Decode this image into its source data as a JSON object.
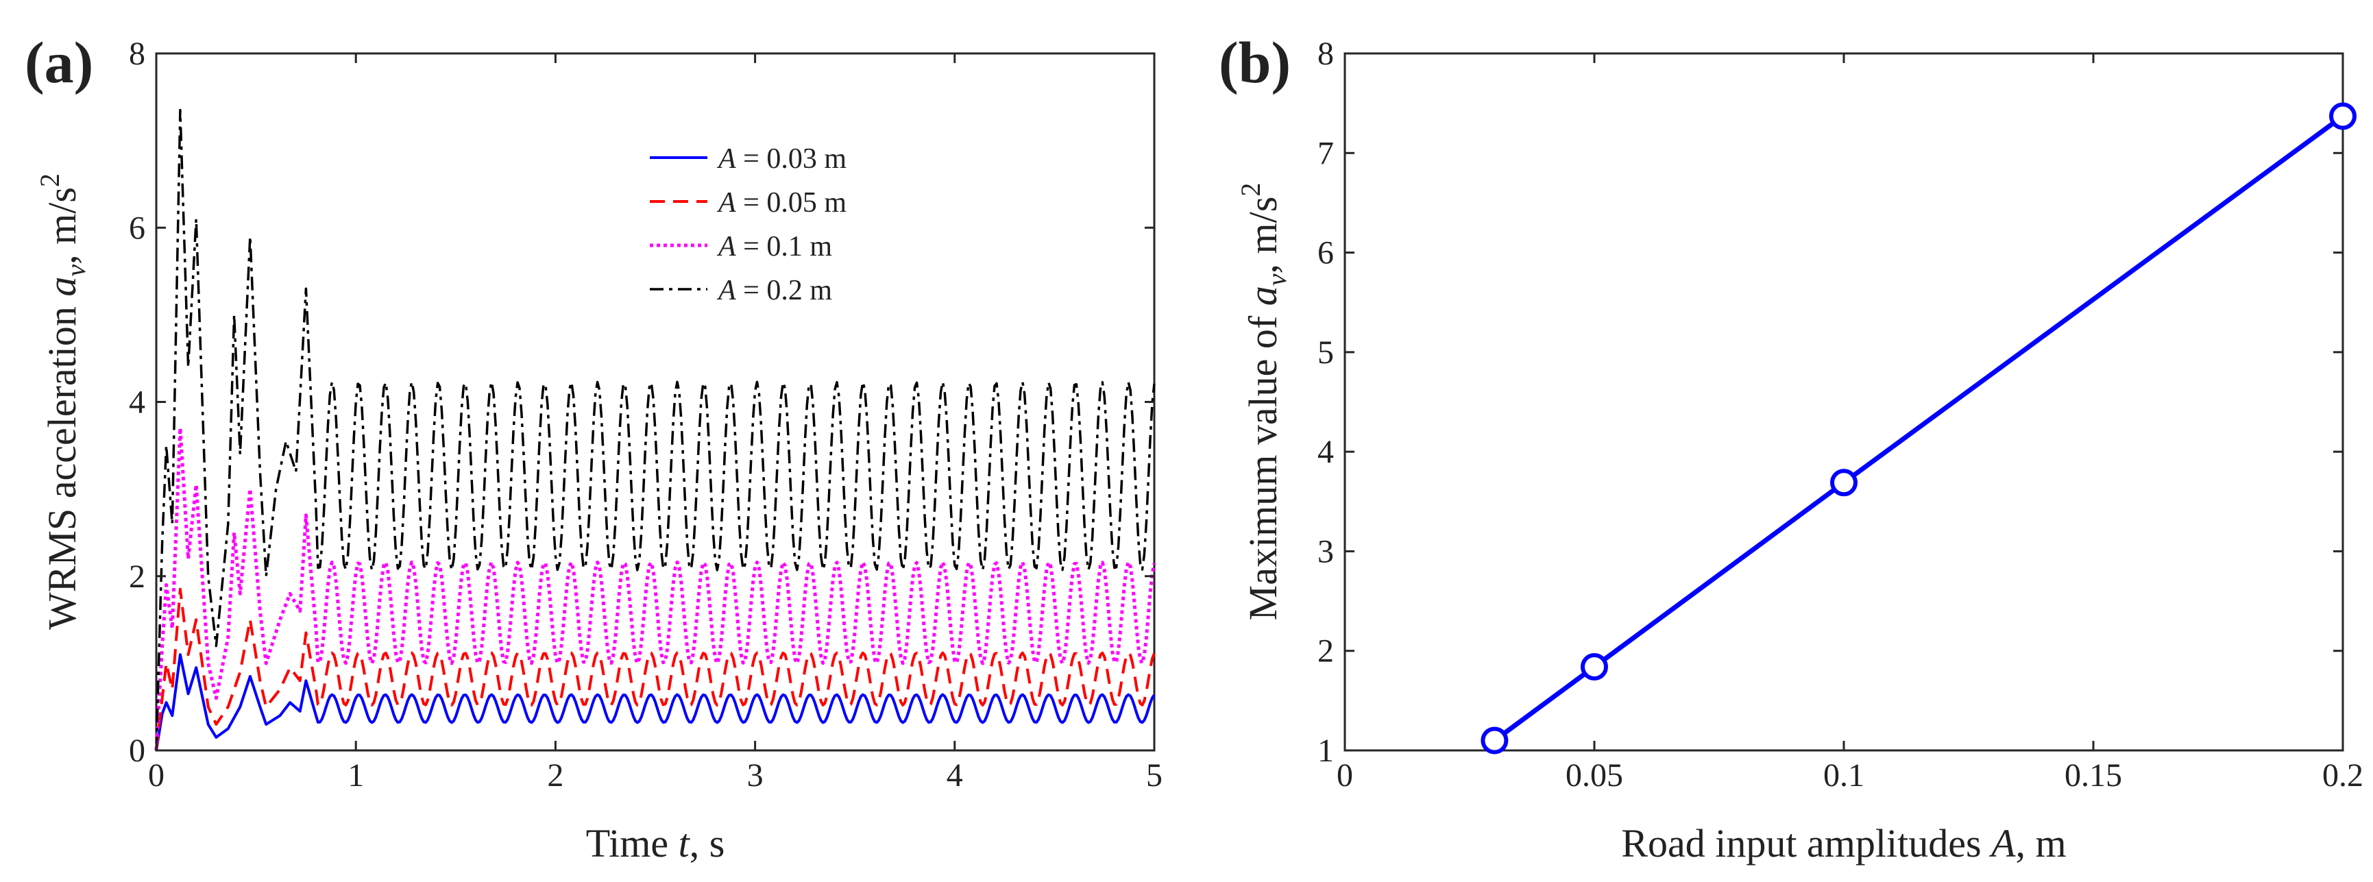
{
  "chart_data": [
    {
      "panel_label": "(a)",
      "type": "line",
      "xlabel": {
        "pre": "Time ",
        "var": "t",
        "post": ", s"
      },
      "ylabel": {
        "pre": "WRMS acceleration ",
        "var": "a",
        "sub": "v",
        "post": ", m/s",
        "sup": "2"
      },
      "xlim": [
        0,
        5
      ],
      "ylim": [
        0,
        8
      ],
      "xticks": [
        0,
        1,
        2,
        3,
        4,
        5
      ],
      "yticks": [
        0,
        2,
        4,
        6,
        8
      ],
      "grid": false,
      "legend_position": "top-right",
      "series": [
        {
          "name": "A = 0.03 m",
          "name_var": "A",
          "name_rest": " = 0.03 m",
          "color": "#0000ff",
          "style": "solid",
          "transient": [
            [
              0,
              0
            ],
            [
              0.03,
              0.42
            ],
            [
              0.05,
              0.55
            ],
            [
              0.08,
              0.4
            ],
            [
              0.12,
              1.1
            ],
            [
              0.16,
              0.65
            ],
            [
              0.2,
              0.95
            ],
            [
              0.26,
              0.3
            ],
            [
              0.3,
              0.15
            ],
            [
              0.36,
              0.25
            ],
            [
              0.42,
              0.5
            ],
            [
              0.47,
              0.85
            ],
            [
              0.52,
              0.5
            ],
            [
              0.55,
              0.3
            ],
            [
              0.62,
              0.4
            ],
            [
              0.67,
              0.55
            ],
            [
              0.72,
              0.45
            ],
            [
              0.75,
              0.8
            ],
            [
              0.8,
              0.4
            ]
          ],
          "oscillation": {
            "mean": 0.48,
            "amplitude": 0.16,
            "period": 0.133,
            "phase": 0.05
          }
        },
        {
          "name": "A = 0.05 m",
          "name_var": "A",
          "name_rest": " = 0.05 m",
          "color": "#ff0000",
          "style": "dashed",
          "transient": [
            [
              0,
              0
            ],
            [
              0.03,
              0.6
            ],
            [
              0.05,
              1.0
            ],
            [
              0.08,
              0.7
            ],
            [
              0.12,
              1.85
            ],
            [
              0.16,
              1.1
            ],
            [
              0.2,
              1.5
            ],
            [
              0.26,
              0.5
            ],
            [
              0.3,
              0.3
            ],
            [
              0.36,
              0.5
            ],
            [
              0.42,
              0.9
            ],
            [
              0.47,
              1.5
            ],
            [
              0.52,
              0.8
            ],
            [
              0.55,
              0.5
            ],
            [
              0.62,
              0.7
            ],
            [
              0.67,
              0.95
            ],
            [
              0.72,
              0.8
            ],
            [
              0.75,
              1.35
            ],
            [
              0.8,
              0.7
            ]
          ],
          "oscillation": {
            "mean": 0.82,
            "amplitude": 0.3,
            "period": 0.133,
            "phase": 0.05
          }
        },
        {
          "name": "A = 0.1 m",
          "name_var": "A",
          "name_rest": " = 0.1 m",
          "color": "#ff00ff",
          "style": "dotted",
          "transient": [
            [
              0,
              0
            ],
            [
              0.03,
              1.2
            ],
            [
              0.05,
              1.9
            ],
            [
              0.08,
              1.4
            ],
            [
              0.12,
              3.7
            ],
            [
              0.16,
              2.2
            ],
            [
              0.2,
              3.05
            ],
            [
              0.26,
              1.0
            ],
            [
              0.3,
              0.6
            ],
            [
              0.36,
              1.3
            ],
            [
              0.39,
              2.5
            ],
            [
              0.42,
              1.8
            ],
            [
              0.47,
              3.0
            ],
            [
              0.52,
              1.6
            ],
            [
              0.55,
              1.0
            ],
            [
              0.62,
              1.5
            ],
            [
              0.67,
              1.8
            ],
            [
              0.72,
              1.6
            ],
            [
              0.75,
              2.7
            ],
            [
              0.8,
              1.4
            ]
          ],
          "oscillation": {
            "mean": 1.58,
            "amplitude": 0.58,
            "period": 0.133,
            "phase": 0.05
          }
        },
        {
          "name": "A = 0.2 m",
          "name_var": "A",
          "name_rest": " = 0.2 m",
          "color": "#000000",
          "style": "dashdot",
          "transient": [
            [
              0,
              0
            ],
            [
              0.03,
              2.4
            ],
            [
              0.05,
              3.5
            ],
            [
              0.08,
              2.6
            ],
            [
              0.12,
              7.35
            ],
            [
              0.16,
              4.4
            ],
            [
              0.2,
              6.1
            ],
            [
              0.26,
              2.0
            ],
            [
              0.3,
              1.2
            ],
            [
              0.36,
              2.6
            ],
            [
              0.39,
              5.0
            ],
            [
              0.42,
              3.4
            ],
            [
              0.47,
              5.9
            ],
            [
              0.52,
              3.2
            ],
            [
              0.55,
              2.0
            ],
            [
              0.6,
              3.0
            ],
            [
              0.65,
              3.55
            ],
            [
              0.7,
              3.2
            ],
            [
              0.75,
              5.3
            ],
            [
              0.8,
              2.8
            ]
          ],
          "oscillation": {
            "mean": 3.15,
            "amplitude": 1.08,
            "period": 0.133,
            "phase": 0.05
          }
        }
      ]
    },
    {
      "panel_label": "(b)",
      "type": "line",
      "xlabel": {
        "pre": "Road input amplitudes ",
        "var": "A",
        "post": ", m"
      },
      "ylabel": {
        "pre": "Maximum value of ",
        "var": "a",
        "sub": "v",
        "post": ", m/s",
        "sup": "2"
      },
      "xlim": [
        0,
        0.2
      ],
      "ylim": [
        1,
        8
      ],
      "xticks": [
        0,
        0.05,
        0.1,
        0.15,
        0.2
      ],
      "xticklabels": [
        "0",
        "0.05",
        "0.1",
        "0.15",
        "0.2"
      ],
      "yticks": [
        1,
        2,
        3,
        4,
        5,
        6,
        7,
        8
      ],
      "grid": false,
      "markers": "circle",
      "series": [
        {
          "color": "#0000ff",
          "x": [
            0.03,
            0.05,
            0.1,
            0.2
          ],
          "y": [
            1.1,
            1.84,
            3.69,
            7.37
          ]
        }
      ]
    }
  ]
}
